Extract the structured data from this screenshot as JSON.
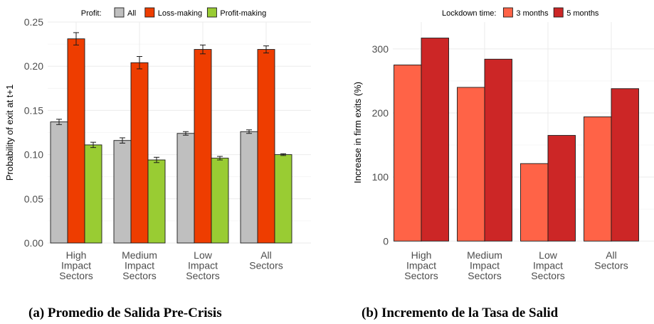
{
  "chart_data": [
    {
      "type": "bar",
      "title": "",
      "legend": {
        "title": "Profit:",
        "position": "top",
        "entries": [
          "All",
          "Loss-making",
          "Profit-making"
        ]
      },
      "categories": [
        [
          "High",
          "Impact",
          "Sectors"
        ],
        [
          "Medium",
          "Impact",
          "Sectors"
        ],
        [
          "Low",
          "Impact",
          "Sectors"
        ],
        [
          "All",
          "Sectors"
        ]
      ],
      "series": [
        {
          "name": "All",
          "values": [
            0.137,
            0.116,
            0.124,
            0.126
          ],
          "errors": [
            0.003,
            0.003,
            0.002,
            0.002
          ],
          "color": "#bfbfbf"
        },
        {
          "name": "Loss-making",
          "values": [
            0.231,
            0.204,
            0.219,
            0.219
          ],
          "errors": [
            0.007,
            0.007,
            0.005,
            0.004
          ],
          "color": "#ee3d00"
        },
        {
          "name": "Profit-making",
          "values": [
            0.111,
            0.094,
            0.096,
            0.1
          ],
          "errors": [
            0.003,
            0.003,
            0.002,
            0.001
          ],
          "color": "#99cc33"
        }
      ],
      "xlabel": "",
      "ylabel": "Probability of exit at t+1",
      "ylim": [
        0,
        0.25
      ],
      "yticks": [
        "0.00",
        "0.05",
        "0.10",
        "0.15",
        "0.20",
        "0.25"
      ],
      "grid": true
    },
    {
      "type": "bar",
      "title": "",
      "legend": {
        "title": "Lockdown time:",
        "position": "top",
        "entries": [
          "3 months",
          "5 months"
        ]
      },
      "categories": [
        [
          "High",
          "Impact",
          "Sectors"
        ],
        [
          "Medium",
          "Impact",
          "Sectors"
        ],
        [
          "Low",
          "Impact",
          "Sectors"
        ],
        [
          "All",
          "Sectors"
        ]
      ],
      "series": [
        {
          "name": "3 months",
          "values": [
            275,
            240,
            121,
            194
          ],
          "color": "#ff6347"
        },
        {
          "name": "5 months",
          "values": [
            317,
            284,
            165,
            238
          ],
          "color": "#cc2626"
        }
      ],
      "xlabel": "",
      "ylabel": "Increase in firm exits (%)",
      "ylim": [
        -3,
        342
      ],
      "yticks": [
        "0",
        "100",
        "200",
        "300"
      ],
      "grid": true
    }
  ],
  "captions": {
    "a": "(a) Promedio de Salida Pre-Crisis",
    "b": "(b) Incremento de la Tasa de Salid"
  }
}
